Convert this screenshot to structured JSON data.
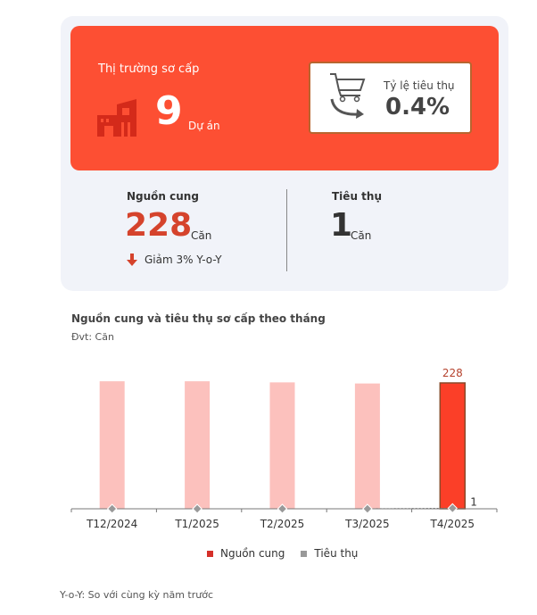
{
  "summary": {
    "market_title": "Thị trường sơ cấp",
    "projects_value": "9",
    "projects_unit": "Dự án",
    "rate_label": "Tỷ lệ tiêu thụ",
    "rate_value": "0.4%",
    "supply_label": "Nguồn cung",
    "supply_value": "228",
    "supply_unit": "Căn",
    "supply_change": "Giảm 3% Y-o-Y",
    "sales_label": "Tiêu thụ",
    "sales_value": "1",
    "sales_unit": "Căn"
  },
  "colors": {
    "accent": "#fd4f33",
    "supply_current": "#fb3f28",
    "supply_past": "#fcc1bd",
    "sales": "#999999"
  },
  "icons": [
    "building-icon",
    "shopping-cart-icon",
    "arrow-down-icon"
  ],
  "chart_data": {
    "type": "bar",
    "title": "Nguồn cung và tiêu thụ sơ cấp theo tháng",
    "subtitle": "Đvt: Căn",
    "categories": [
      "T12/2024",
      "T1/2025",
      "T2/2025",
      "T3/2025",
      "T4/2025"
    ],
    "series": [
      {
        "name": "Nguồn cung",
        "type": "bar",
        "values": [
          231,
          231,
          229,
          227,
          228
        ],
        "labels": [
          "",
          "",
          "",
          "",
          "228"
        ]
      },
      {
        "name": "Tiêu thụ",
        "type": "line",
        "values": [
          0,
          0,
          0,
          0,
          1
        ],
        "labels": [
          "",
          "",
          "",
          "",
          "1"
        ]
      }
    ],
    "ylim": [
      0,
      240
    ],
    "grid": false,
    "legend": "bottom"
  },
  "footnote": "Y-o-Y: So với cùng kỳ năm trước"
}
